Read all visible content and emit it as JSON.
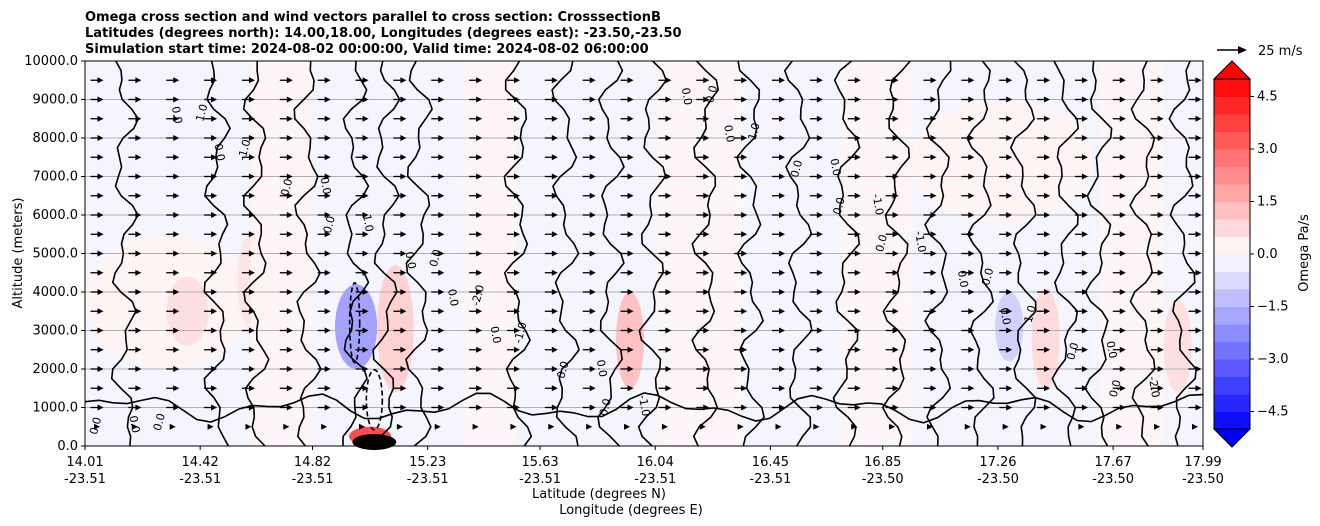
{
  "chart_data": {
    "type": "contour",
    "title_lines": [
      "Omega cross section and wind vectors parallel to cross section: CrosssectionB",
      "Latitudes (degrees north): 14.00,18.00, Longitudes (degrees east): -23.50,-23.50",
      "Simulation start time: 2024-08-02 00:00:00, Valid time: 2024-08-02 06:00:00"
    ],
    "ylabel": "Altitude (meters)",
    "xlabel_lat": "Latitude (degrees N)",
    "xlabel_lon": "Longitude (degrees E)",
    "ylim": [
      0,
      10000
    ],
    "xlim": [
      14.01,
      17.99
    ],
    "y_ticks": [
      0,
      1000,
      2000,
      3000,
      4000,
      5000,
      6000,
      7000,
      8000,
      9000,
      10000
    ],
    "y_tick_labels": [
      "0.0",
      "1000.0",
      "2000.0",
      "3000.0",
      "4000.0",
      "5000.0",
      "6000.0",
      "7000.0",
      "8000.0",
      "9000.0",
      "10000.0"
    ],
    "x_ticks": [
      {
        "lat": 14.01,
        "lat_label": "14.01",
        "lon_label": "-23.51"
      },
      {
        "lat": 14.42,
        "lat_label": "14.42",
        "lon_label": "-23.51"
      },
      {
        "lat": 14.82,
        "lat_label": "14.82",
        "lon_label": "-23.51"
      },
      {
        "lat": 15.23,
        "lat_label": "15.23",
        "lon_label": "-23.51"
      },
      {
        "lat": 15.63,
        "lat_label": "15.63",
        "lon_label": "-23.51"
      },
      {
        "lat": 16.04,
        "lat_label": "16.04",
        "lon_label": "-23.51"
      },
      {
        "lat": 16.45,
        "lat_label": "16.45",
        "lon_label": "-23.51"
      },
      {
        "lat": 16.85,
        "lat_label": "16.85",
        "lon_label": "-23.50"
      },
      {
        "lat": 17.26,
        "lat_label": "17.26",
        "lon_label": "-23.50"
      },
      {
        "lat": 17.67,
        "lat_label": "17.67",
        "lon_label": "-23.50"
      },
      {
        "lat": 17.99,
        "lat_label": "17.99",
        "lon_label": "-23.50"
      }
    ],
    "colorbar": {
      "label": "Omega Pa/s",
      "range": [
        -5,
        5
      ],
      "levels": 20,
      "ticks": [
        -4.5,
        -3.0,
        -1.5,
        0.0,
        1.5,
        3.0,
        4.5
      ],
      "tick_labels": [
        "−4.5",
        "−3.0",
        "−1.5",
        "0.0",
        "1.5",
        "3.0",
        "4.5"
      ],
      "cmap": "bwr",
      "extend": "both"
    },
    "quiver_key": {
      "label": "25 m/s",
      "speed": 25
    },
    "wind_vectors": {
      "direction": "toward increasing latitude",
      "typical_speed_ms": 8
    },
    "shaded_regions": [
      {
        "sign": "negative",
        "x_range": [
          14.01,
          14.55
        ],
        "y_range": [
          5500,
          10000
        ],
        "value": -0.2
      },
      {
        "sign": "positive",
        "x_range": [
          14.01,
          14.6
        ],
        "y_range": [
          2000,
          5500
        ],
        "value": 0.2
      },
      {
        "sign": "positive",
        "x_range": [
          14.3,
          14.45
        ],
        "y_range": [
          2600,
          4400
        ],
        "value": 0.6
      },
      {
        "sign": "positive",
        "x_range": [
          14.55,
          14.68
        ],
        "y_range": [
          3000,
          5600
        ],
        "value": 0.5
      },
      {
        "sign": "negative",
        "x_range": [
          14.9,
          15.05
        ],
        "y_range": [
          2000,
          4200
        ],
        "value": -1.8
      },
      {
        "sign": "positive",
        "x_range": [
          15.05,
          15.18
        ],
        "y_range": [
          1400,
          4700
        ],
        "value": 0.9
      },
      {
        "sign": "positive",
        "x_range": [
          14.95,
          15.1
        ],
        "y_range": [
          0,
          500
        ],
        "value": 3.5
      },
      {
        "sign": "negative",
        "x_range": [
          15.25,
          15.9
        ],
        "y_range": [
          5000,
          10000
        ],
        "value": -0.2
      },
      {
        "sign": "positive",
        "x_range": [
          15.9,
          16.0
        ],
        "y_range": [
          1500,
          4000
        ],
        "value": 1.2
      },
      {
        "sign": "negative",
        "x_range": [
          16.5,
          16.95
        ],
        "y_range": [
          4800,
          10000
        ],
        "value": -0.2
      },
      {
        "sign": "positive",
        "x_range": [
          16.95,
          17.6
        ],
        "y_range": [
          5800,
          9000
        ],
        "value": 0.2
      },
      {
        "sign": "negative",
        "x_range": [
          17.25,
          17.35
        ],
        "y_range": [
          2200,
          4000
        ],
        "value": -0.9
      },
      {
        "sign": "positive",
        "x_range": [
          17.38,
          17.48
        ],
        "y_range": [
          1500,
          4100
        ],
        "value": 0.7
      },
      {
        "sign": "positive",
        "x_range": [
          17.85,
          17.95
        ],
        "y_range": [
          1400,
          3800
        ],
        "value": 0.6
      }
    ],
    "contour_labels": [
      "0.0",
      "0.0",
      "0.0",
      "0.0",
      "0.0",
      "0.0",
      "0.0",
      "0.0",
      "0.0",
      "0.0",
      "0.0",
      "0.0",
      "0.0",
      "0.0",
      "0.0",
      "0.0",
      "0.0",
      "0.0",
      "0.0",
      "0.0",
      "-1.0",
      "-1.0",
      "-1.0",
      "-1.0",
      "1.0",
      "1.0",
      "1.0",
      "-2.0",
      "-2.0",
      "-1.0",
      "1.0",
      "0.0",
      "0.0",
      "0.0",
      "0.0",
      "0.0",
      "0.0",
      "0.0",
      "0.0"
    ],
    "annotations": [
      "0.0",
      "-1.0",
      "1.0",
      "-2.0"
    ]
  }
}
